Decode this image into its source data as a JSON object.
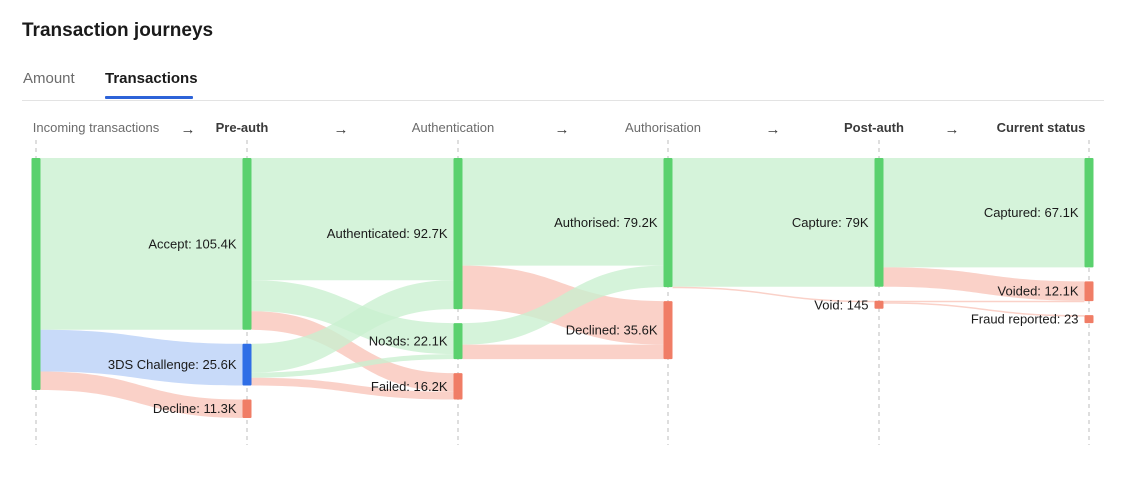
{
  "header": {
    "title": "Transaction journeys"
  },
  "tabs": [
    {
      "label": "Amount",
      "active": false
    },
    {
      "label": "Transactions",
      "active": true
    }
  ],
  "colors": {
    "accent": "#2d63d8",
    "success_node": "#5ad16e",
    "success_flow": "#c9f0cf",
    "fail_node": "#f07d66",
    "fail_flow": "#f8c4b8",
    "challenge_node": "#2f6ee6",
    "challenge_flow": "#b9cff7"
  },
  "chart_data": {
    "type": "sankey",
    "title": "Transaction journeys",
    "stages": [
      {
        "label": "Incoming transactions",
        "bold": false
      },
      {
        "label": "Pre-auth",
        "bold": true
      },
      {
        "label": "Authentication",
        "bold": false
      },
      {
        "label": "Authorisation",
        "bold": false
      },
      {
        "label": "Post-auth",
        "bold": true
      },
      {
        "label": "Current status",
        "bold": true
      }
    ],
    "arrow_glyph": "→",
    "nodes": [
      {
        "id": "incoming",
        "stage": 0,
        "value": 142.3,
        "label": "",
        "kind": "success"
      },
      {
        "id": "accept",
        "stage": 1,
        "value": 105.4,
        "label": "Accept: 105.4K",
        "kind": "success"
      },
      {
        "id": "challenge",
        "stage": 1,
        "value": 25.6,
        "label": "3DS Challenge: 25.6K",
        "kind": "challenge"
      },
      {
        "id": "decline",
        "stage": 1,
        "value": 11.3,
        "label": "Decline: 11.3K",
        "kind": "fail"
      },
      {
        "id": "authenticated",
        "stage": 2,
        "value": 92.7,
        "label": "Authenticated: 92.7K",
        "kind": "success"
      },
      {
        "id": "no3ds",
        "stage": 2,
        "value": 22.1,
        "label": "No3ds: 22.1K",
        "kind": "success"
      },
      {
        "id": "failed",
        "stage": 2,
        "value": 16.2,
        "label": "Failed: 16.2K",
        "kind": "fail"
      },
      {
        "id": "authorised",
        "stage": 3,
        "value": 79.2,
        "label": "Authorised: 79.2K",
        "kind": "success"
      },
      {
        "id": "declined",
        "stage": 3,
        "value": 35.6,
        "label": "Declined: 35.6K",
        "kind": "fail"
      },
      {
        "id": "capture",
        "stage": 4,
        "value": 79,
        "label": "Capture: 79K",
        "kind": "success"
      },
      {
        "id": "void",
        "stage": 4,
        "value": 0.145,
        "label": "Void: 145",
        "kind": "fail"
      },
      {
        "id": "captured",
        "stage": 5,
        "value": 67.1,
        "label": "Captured: 67.1K",
        "kind": "success"
      },
      {
        "id": "voided",
        "stage": 5,
        "value": 12.1,
        "label": "Voided: 12.1K",
        "kind": "fail"
      },
      {
        "id": "fraud",
        "stage": 5,
        "value": 0.023,
        "label": "Fraud reported: 23",
        "kind": "fail"
      }
    ],
    "links": [
      {
        "source": "incoming",
        "target": "accept",
        "value": 105.4,
        "kind": "success"
      },
      {
        "source": "incoming",
        "target": "challenge",
        "value": 25.6,
        "kind": "challenge"
      },
      {
        "source": "incoming",
        "target": "decline",
        "value": 11.3,
        "kind": "fail"
      },
      {
        "source": "accept",
        "target": "authenticated",
        "value": 75.0,
        "kind": "success"
      },
      {
        "source": "accept",
        "target": "no3ds",
        "value": 19.0,
        "kind": "success"
      },
      {
        "source": "accept",
        "target": "failed",
        "value": 11.4,
        "kind": "fail"
      },
      {
        "source": "challenge",
        "target": "authenticated",
        "value": 17.7,
        "kind": "success"
      },
      {
        "source": "challenge",
        "target": "no3ds",
        "value": 3.1,
        "kind": "success"
      },
      {
        "source": "challenge",
        "target": "failed",
        "value": 4.8,
        "kind": "fail"
      },
      {
        "source": "authenticated",
        "target": "authorised",
        "value": 66.0,
        "kind": "success"
      },
      {
        "source": "authenticated",
        "target": "declined",
        "value": 26.7,
        "kind": "fail"
      },
      {
        "source": "no3ds",
        "target": "authorised",
        "value": 13.2,
        "kind": "success"
      },
      {
        "source": "no3ds",
        "target": "declined",
        "value": 8.9,
        "kind": "fail"
      },
      {
        "source": "authorised",
        "target": "capture",
        "value": 79.0,
        "kind": "success"
      },
      {
        "source": "authorised",
        "target": "void",
        "value": 0.145,
        "kind": "fail"
      },
      {
        "source": "capture",
        "target": "captured",
        "value": 67.1,
        "kind": "success"
      },
      {
        "source": "capture",
        "target": "voided",
        "value": 11.9,
        "kind": "fail"
      },
      {
        "source": "void",
        "target": "voided",
        "value": 0.122,
        "kind": "fail"
      },
      {
        "source": "void",
        "target": "fraud",
        "value": 0.023,
        "kind": "fail"
      }
    ]
  }
}
